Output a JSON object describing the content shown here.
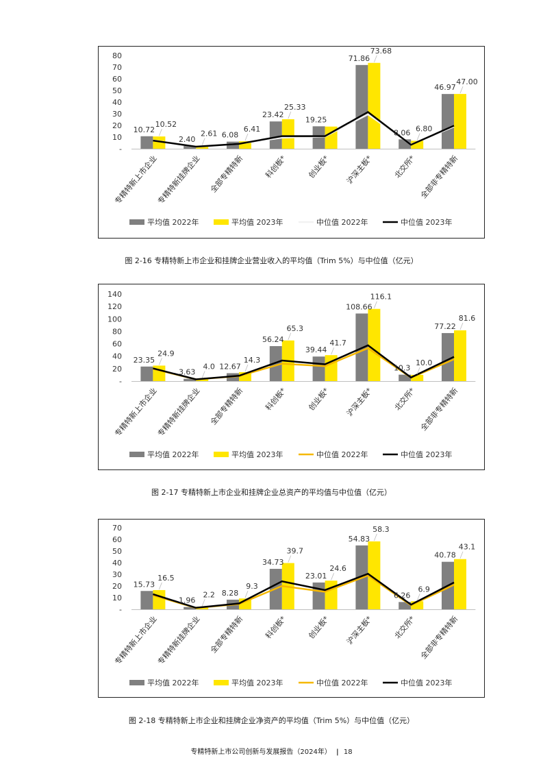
{
  "categories": [
    "专精特新上市企业",
    "专精特新挂牌企业",
    "全部专精特新",
    "科创板*",
    "创业板*",
    "沪深主板*",
    "北交所*",
    "全部非专精特新"
  ],
  "legend": {
    "mean2022": "平均值 2022年",
    "mean2023": "平均值 2023年",
    "median2022": "中位值 2022年",
    "median2023": "中位值 2023年"
  },
  "colors": {
    "mean2022": "#808080",
    "mean2023": "#FFE600",
    "median2022_chart1": "#F2F2F2",
    "median2022": "#F5B800",
    "median2023": "#000000"
  },
  "chart_data": [
    {
      "type": "bar",
      "caption": "图 2-16 专精特新上市企业和挂牌企业营业收入的平均值（Trim 5%）与中位值（亿元）",
      "yticks": [
        "-",
        "10",
        "20",
        "30",
        "40",
        "50",
        "60",
        "70",
        "80"
      ],
      "ylim": [
        0,
        80
      ],
      "series": [
        {
          "name": "平均值 2022年",
          "values": [
            10.72,
            2.4,
            6.08,
            23.42,
            19.25,
            71.86,
            8.06,
            46.97
          ],
          "labels": [
            "10.72",
            "2.40",
            "6.08",
            "23.42",
            "19.25",
            "71.86",
            "8.06",
            "46.97"
          ]
        },
        {
          "name": "平均值 2023年",
          "values": [
            10.52,
            2.61,
            6.41,
            25.33,
            19.0,
            73.68,
            6.8,
            47.0
          ],
          "labels": [
            "10.52",
            "2.61",
            "6.41",
            "25.33",
            "",
            "73.68",
            "6.80",
            "47.00"
          ]
        },
        {
          "name": "中位值 2022年",
          "values": [
            7.2,
            1.6,
            4.3,
            9.5,
            10.5,
            29.5,
            3.6,
            19.0
          ]
        },
        {
          "name": "中位值 2023年",
          "values": [
            7.0,
            1.8,
            4.2,
            10.8,
            10.8,
            31.5,
            3.4,
            19.8
          ]
        }
      ]
    },
    {
      "type": "bar",
      "caption": "图 2-17 专精特新上市企业和挂牌企业总资产的平均值与中位值（亿元）",
      "yticks": [
        "-",
        "20",
        "40",
        "60",
        "80",
        "100",
        "120",
        "140"
      ],
      "ylim": [
        0,
        140
      ],
      "series": [
        {
          "name": "平均值 2022年",
          "values": [
            23.35,
            3.63,
            12.67,
            56.24,
            39.44,
            108.66,
            10.3,
            77.22
          ],
          "labels": [
            "23.35",
            "3.63",
            "12.67",
            "56.24",
            "39.44",
            "108.66",
            "10.3",
            "77.22"
          ]
        },
        {
          "name": "平均值 2023年",
          "values": [
            24.9,
            4.0,
            14.3,
            65.3,
            41.7,
            116.1,
            10.0,
            81.6
          ],
          "labels": [
            "24.9",
            "4.0",
            "14.3",
            "65.3",
            "41.7",
            "116.1",
            "10.0",
            "81.6"
          ]
        },
        {
          "name": "中位值 2022年",
          "values": [
            19.5,
            2.8,
            8.0,
            28.0,
            24.0,
            53.0,
            5.5,
            35.0
          ]
        },
        {
          "name": "中位值 2023年",
          "values": [
            20.5,
            2.8,
            8.5,
            33.0,
            27.0,
            57.5,
            5.8,
            39.0
          ]
        }
      ]
    },
    {
      "type": "bar",
      "caption": "图 2-18 专精特新上市企业和挂牌企业净资产的平均值（Trim 5%）与中位值（亿元）",
      "yticks": [
        "-",
        "10",
        "20",
        "30",
        "40",
        "50",
        "60",
        "70"
      ],
      "ylim": [
        0,
        70
      ],
      "series": [
        {
          "name": "平均值 2022年",
          "values": [
            15.73,
            1.96,
            8.28,
            34.73,
            23.01,
            54.83,
            6.26,
            40.78
          ],
          "labels": [
            "15.73",
            "1.96",
            "8.28",
            "34.73",
            "23.01",
            "54.83",
            "6.26",
            "40.78"
          ]
        },
        {
          "name": "平均值 2023年",
          "values": [
            16.5,
            2.2,
            9.3,
            39.7,
            24.6,
            58.3,
            6.9,
            43.1
          ],
          "labels": [
            "16.5",
            "2.2",
            "9.3",
            "39.7",
            "24.6",
            "58.3",
            "6.9",
            "43.1"
          ]
        },
        {
          "name": "中位值 2022年",
          "values": [
            12.0,
            1.2,
            4.5,
            20.0,
            15.0,
            29.0,
            3.5,
            21.0
          ]
        },
        {
          "name": "中位值 2023年",
          "values": [
            13.0,
            1.3,
            5.0,
            24.0,
            16.5,
            30.5,
            4.0,
            23.0
          ]
        }
      ]
    }
  ],
  "footer": {
    "title": "专精特新上市公司创新与发展报告（2024年）",
    "separator": "|",
    "page": "18"
  }
}
